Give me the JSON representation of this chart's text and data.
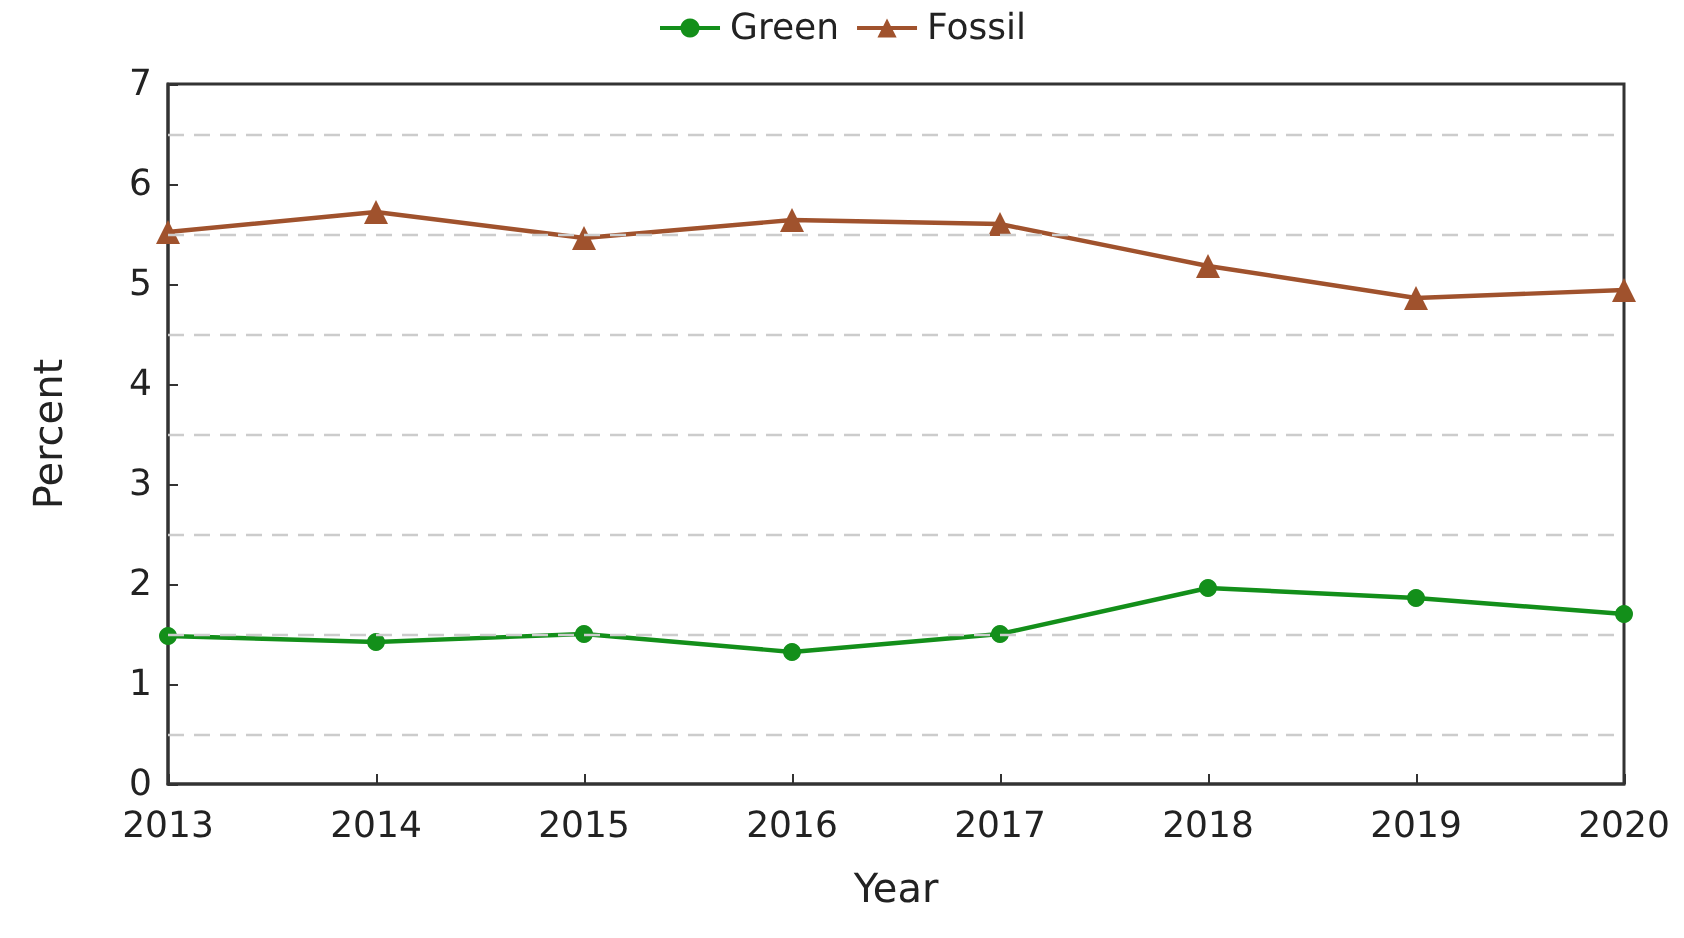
{
  "chart_data": {
    "type": "line",
    "xlabel": "Year",
    "ylabel": "Percent",
    "categories": [
      "2013",
      "2014",
      "2015",
      "2016",
      "2017",
      "2018",
      "2019",
      "2020"
    ],
    "series": [
      {
        "name": "Green",
        "color": "#138f1a",
        "marker": "circle",
        "values": [
          1.48,
          1.42,
          1.5,
          1.32,
          1.5,
          1.96,
          1.86,
          1.7
        ]
      },
      {
        "name": "Fossil",
        "color": "#a0522d",
        "marker": "triangle",
        "values": [
          5.52,
          5.72,
          5.46,
          5.64,
          5.6,
          5.18,
          4.86,
          4.94
        ]
      }
    ],
    "ylim": [
      0,
      7
    ],
    "yticks": [
      0,
      {
        "value": 0.5,
        "label": null
      },
      1,
      {
        "value": 1.5,
        "label": null
      },
      2,
      {
        "value": 2.5,
        "label": null
      },
      3,
      {
        "value": 3.5,
        "label": null
      },
      4,
      {
        "value": 4.5,
        "label": null
      },
      5,
      {
        "value": 5.5,
        "label": null
      },
      6,
      {
        "value": 6.5,
        "label": null
      },
      7
    ],
    "grid": "y",
    "legend": "top",
    "line_style": "solid"
  }
}
